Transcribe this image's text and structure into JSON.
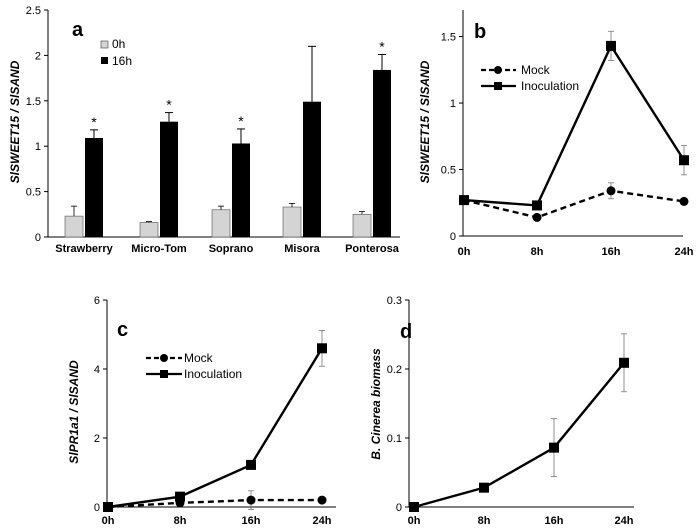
{
  "chart_data": [
    {
      "panel": "a",
      "type": "bar",
      "ylabel": "SlSWEET15 / SlSAND",
      "ylim": [
        0,
        2.5
      ],
      "yticks": [
        "0",
        "0.5",
        "1",
        "1.5",
        "2",
        "2.5"
      ],
      "categories": [
        "Strawberry",
        "Micro-Tom",
        "Soprano",
        "Misora",
        "Ponterosa"
      ],
      "series": [
        {
          "name": "0h",
          "values": [
            0.23,
            0.16,
            0.3,
            0.33,
            0.25
          ],
          "errors": [
            0.11,
            0.01,
            0.04,
            0.04,
            0.03
          ]
        },
        {
          "name": "16h",
          "values": [
            1.09,
            1.27,
            1.03,
            1.49,
            1.84
          ],
          "errors": [
            0.09,
            0.1,
            0.16,
            0.61,
            0.17
          ]
        }
      ],
      "annotations": [
        "*",
        "*",
        "*",
        "",
        "*"
      ]
    },
    {
      "panel": "b",
      "type": "line",
      "ylabel": "SlSWEET15 / SlSAND",
      "ylim": [
        0,
        1.7
      ],
      "yticks": [
        "0",
        "0.5",
        "1",
        "1.5"
      ],
      "categories": [
        "0h",
        "8h",
        "16h",
        "24h"
      ],
      "series": [
        {
          "name": "Mock",
          "values": [
            0.27,
            0.14,
            0.34,
            0.26
          ],
          "errors": [
            0,
            0.01,
            0.06,
            0.01
          ]
        },
        {
          "name": "Inoculation",
          "values": [
            0.27,
            0.23,
            1.43,
            0.57
          ],
          "errors": [
            0,
            0.01,
            0.11,
            0.11
          ]
        }
      ]
    },
    {
      "panel": "c",
      "type": "line",
      "ylabel": "SlPR1a1 / SlSAND",
      "ylim": [
        0,
        6
      ],
      "yticks": [
        "0",
        "2",
        "4",
        "6"
      ],
      "categories": [
        "0h",
        "8h",
        "16h",
        "24h"
      ],
      "series": [
        {
          "name": "Mock",
          "values": [
            0,
            0.12,
            0.2,
            0.2
          ],
          "errors": [
            0,
            0.02,
            0.27,
            0.02
          ]
        },
        {
          "name": "Inoculation",
          "values": [
            0,
            0.3,
            1.22,
            4.6
          ],
          "errors": [
            0,
            0.05,
            0.06,
            0.52
          ]
        }
      ]
    },
    {
      "panel": "d",
      "type": "line",
      "ylabel": "B. Cinerea biomass",
      "ylim": [
        0,
        0.3
      ],
      "yticks": [
        "0",
        "0.1",
        "0.2",
        "0.3"
      ],
      "categories": [
        "0h",
        "8h",
        "16h",
        "24h"
      ],
      "series": [
        {
          "name": "B. Cinerea biomass",
          "values": [
            0,
            0.028,
            0.086,
            0.209
          ],
          "errors": [
            0,
            0.005,
            0.042,
            0.042
          ]
        }
      ]
    }
  ]
}
